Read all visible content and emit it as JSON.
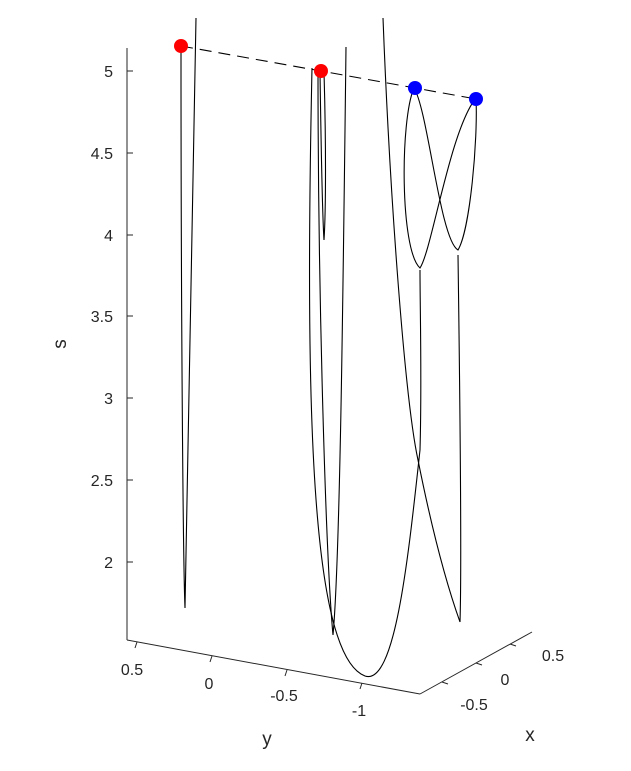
{
  "chart_data": {
    "type": "3d-line",
    "xlabel": "x",
    "ylabel": "y",
    "zlabel": "s",
    "z_ticks": [
      "2",
      "2.5",
      "3",
      "3.5",
      "4",
      "4.5",
      "5"
    ],
    "y_ticks": [
      "0.5",
      "0",
      "-0.5",
      "-1"
    ],
    "x_ticks": [
      "-0.5",
      "0",
      "0.5"
    ],
    "zlim": [
      1.52,
      5.17
    ],
    "ylim": [
      0.65,
      -1.2
    ],
    "xlim": [
      -0.75,
      0.75
    ],
    "grid": false,
    "markers": [
      {
        "color": "#ff0000",
        "s": 5.15
      },
      {
        "color": "#ff0000",
        "s": 5.0
      },
      {
        "color": "#0000ff",
        "s": 4.89
      },
      {
        "color": "#0000ff",
        "s": 4.83
      }
    ],
    "curves_description_s_min": [
      1.7,
      1.65,
      1.52,
      1.6,
      1.65
    ]
  }
}
